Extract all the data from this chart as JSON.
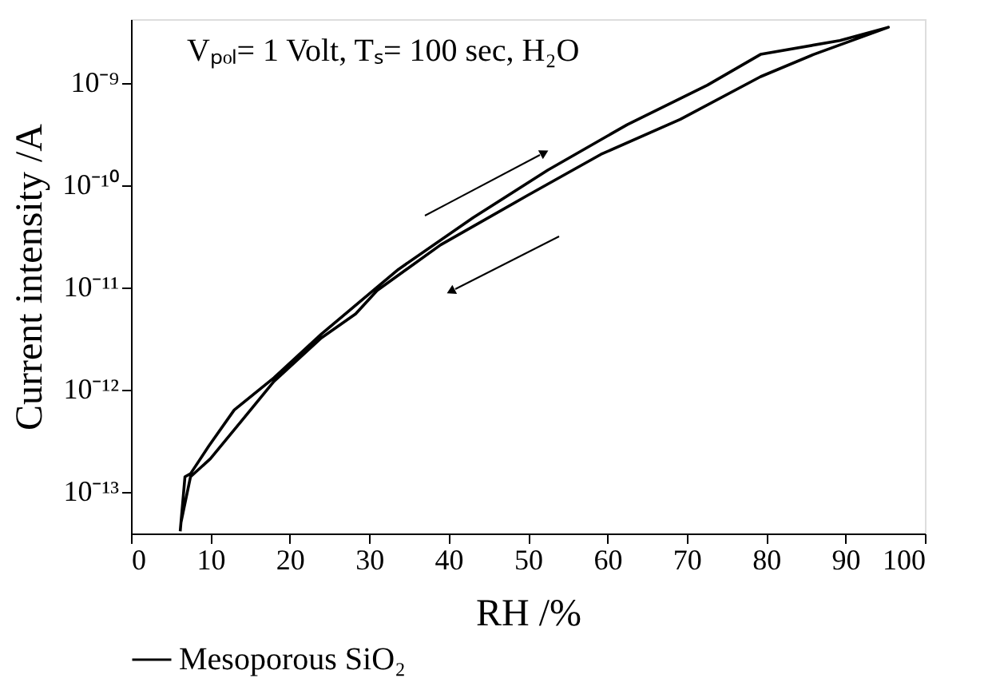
{
  "chart_data": {
    "type": "line",
    "xlabel": "RH /%",
    "ylabel": "Current intensity /A",
    "annotations": [
      "Vₚₒₗ= 1 Volt, Tₛ= 100 sec, H₂O"
    ],
    "series": [
      {
        "name": "Mesoporous SiO₂",
        "color": "#000000",
        "x": [
          6.2,
          6.8,
          7.5,
          9.8,
          13,
          18,
          24,
          31,
          33.7,
          43.1,
          52.5,
          62.5,
          72.6,
          79.3,
          89.3,
          95.4,
          86,
          79.3,
          69.2,
          59.2,
          49.8,
          39,
          31,
          28.3,
          24,
          18,
          14,
          10,
          7.5,
          6.3
        ],
        "values": [
          4.1e-14,
          1.4e-13,
          1.5e-13,
          2.8e-13,
          6.3e-13,
          1.3e-12,
          3.5e-12,
          1e-11,
          1.5e-11,
          4.8e-11,
          1.4e-10,
          3.9e-10,
          9.5e-10,
          1.9e-09,
          2.6e-09,
          3.5e-09,
          1.9e-09,
          1.15e-09,
          4.4e-10,
          2e-10,
          7.8e-11,
          2.6e-11,
          9.3e-12,
          5.5e-12,
          3.2e-12,
          1.2e-12,
          5e-13,
          2.1e-13,
          1.4e-13,
          5e-14
        ]
      }
    ],
    "xlim": [
      0,
      100
    ],
    "xticks": [
      0,
      10,
      20,
      30,
      40,
      50,
      60,
      70,
      80,
      90,
      100
    ],
    "ylim": [
      3.9e-14,
      4.2e-09
    ],
    "log": "y",
    "yticks": [
      {
        "value": 1e-13,
        "label": "10⁻¹³"
      },
      {
        "value": 1e-12,
        "label": "10⁻¹²"
      },
      {
        "value": 1e-11,
        "label": "10⁻¹¹"
      },
      {
        "value": 1e-10,
        "label": "10⁻¹⁰"
      },
      {
        "value": 1e-09,
        "label": "10⁻⁹"
      }
    ],
    "grid": false,
    "legend": "bottom",
    "line_style": "solid",
    "marker": "none"
  }
}
